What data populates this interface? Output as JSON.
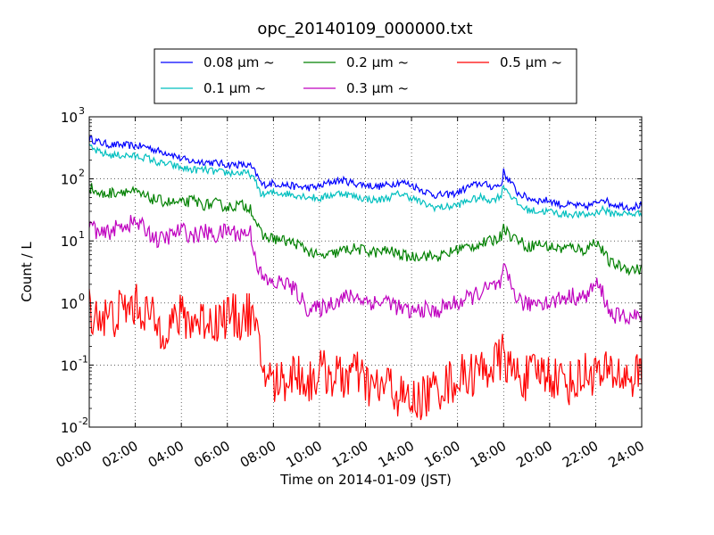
{
  "chart_data": {
    "type": "line",
    "title": "opc_20140109_000000.txt",
    "xlabel": "Time on 2014-01-09 (JST)",
    "ylabel": "Count / L",
    "x_unit": "hours",
    "xlim": [
      0,
      24
    ],
    "ylim": [
      0.01,
      1000
    ],
    "yscale": "log",
    "grid": true,
    "legend_position": "top",
    "x_ticks": [
      {
        "value": 0,
        "label": "00:00"
      },
      {
        "value": 2,
        "label": "02:00"
      },
      {
        "value": 4,
        "label": "04:00"
      },
      {
        "value": 6,
        "label": "06:00"
      },
      {
        "value": 8,
        "label": "08:00"
      },
      {
        "value": 10,
        "label": "10:00"
      },
      {
        "value": 12,
        "label": "12:00"
      },
      {
        "value": 14,
        "label": "14:00"
      },
      {
        "value": 16,
        "label": "16:00"
      },
      {
        "value": 18,
        "label": "18:00"
      },
      {
        "value": 20,
        "label": "20:00"
      },
      {
        "value": 22,
        "label": "22:00"
      },
      {
        "value": 24,
        "label": "24:00"
      }
    ],
    "y_ticks": [
      {
        "value": 0.01,
        "base": "10",
        "exp": "-2"
      },
      {
        "value": 0.1,
        "base": "10",
        "exp": "-1"
      },
      {
        "value": 1,
        "base": "10",
        "exp": "0"
      },
      {
        "value": 10,
        "base": "10",
        "exp": "1"
      },
      {
        "value": 100,
        "base": "10",
        "exp": "2"
      },
      {
        "value": 1000,
        "base": "10",
        "exp": "3"
      }
    ],
    "series": [
      {
        "name": "0.08 μm ~",
        "color": "#0000ff",
        "x": [
          0,
          0.5,
          1,
          1.5,
          2,
          2.5,
          3,
          3.5,
          4,
          4.5,
          5,
          5.5,
          6,
          6.5,
          7,
          7.25,
          7.5,
          8,
          8.5,
          9,
          9.5,
          10,
          10.5,
          11,
          11.5,
          12,
          12.5,
          13,
          13.5,
          14,
          14.5,
          15,
          15.5,
          16,
          16.5,
          17,
          17.5,
          17.9,
          18,
          18.1,
          18.3,
          18.6,
          19,
          19.5,
          20,
          20.5,
          21,
          21.5,
          22,
          22.3,
          22.6,
          23,
          23.5,
          24
        ],
        "y": [
          450,
          380,
          350,
          350,
          340,
          330,
          280,
          260,
          210,
          190,
          190,
          180,
          170,
          170,
          160,
          120,
          80,
          85,
          80,
          75,
          72,
          75,
          90,
          95,
          85,
          80,
          75,
          80,
          90,
          80,
          65,
          55,
          55,
          60,
          75,
          85,
          75,
          80,
          130,
          110,
          90,
          60,
          50,
          45,
          45,
          38,
          38,
          35,
          40,
          50,
          40,
          38,
          35,
          38
        ]
      },
      {
        "name": "0.1 μm ~",
        "color": "#00bfbf",
        "x": [
          0,
          0.5,
          1,
          1.5,
          2,
          2.5,
          3,
          3.5,
          4,
          4.5,
          5,
          5.5,
          6,
          6.5,
          7,
          7.25,
          7.5,
          8,
          8.5,
          9,
          9.5,
          10,
          10.5,
          11,
          11.5,
          12,
          12.5,
          13,
          13.5,
          14,
          14.5,
          15,
          15.5,
          16,
          16.5,
          17,
          17.5,
          17.9,
          18,
          18.1,
          18.3,
          18.6,
          19,
          19.5,
          20,
          20.5,
          21,
          21.5,
          22,
          22.3,
          22.6,
          23,
          23.5,
          24
        ],
        "y": [
          320,
          260,
          240,
          240,
          230,
          220,
          180,
          170,
          150,
          140,
          140,
          130,
          125,
          125,
          120,
          85,
          55,
          60,
          58,
          55,
          52,
          48,
          55,
          60,
          52,
          48,
          45,
          50,
          58,
          50,
          40,
          35,
          35,
          38,
          45,
          50,
          45,
          55,
          80,
          70,
          55,
          40,
          32,
          30,
          30,
          27,
          27,
          26,
          28,
          33,
          28,
          28,
          27,
          28
        ]
      },
      {
        "name": "0.2 μm ~",
        "color": "#008000",
        "x": [
          0,
          0.5,
          1,
          1.5,
          2,
          2.5,
          3,
          3.5,
          4,
          4.5,
          5,
          5.5,
          6,
          6.5,
          7,
          7.25,
          7.5,
          8,
          8.5,
          9,
          9.5,
          10,
          10.5,
          11,
          11.5,
          12,
          12.5,
          13,
          13.5,
          14,
          14.5,
          15,
          15.5,
          16,
          16.5,
          17,
          17.5,
          17.9,
          18,
          18.1,
          18.3,
          18.6,
          19,
          19.5,
          20,
          20.5,
          21,
          21.5,
          22,
          22.3,
          22.6,
          23,
          23.5,
          24
        ],
        "y": [
          75,
          55,
          60,
          65,
          60,
          50,
          45,
          42,
          40,
          45,
          38,
          40,
          35,
          38,
          35,
          20,
          12,
          11,
          10,
          9,
          7,
          5.5,
          6,
          7,
          7.5,
          7,
          6.5,
          7,
          6,
          5.5,
          6,
          5.5,
          6,
          7.5,
          8,
          9,
          10,
          12,
          20,
          15,
          12,
          11,
          8,
          9,
          8,
          7.5,
          8,
          7,
          10,
          7,
          4.5,
          4,
          3.5,
          3.5
        ]
      },
      {
        "name": "0.3 μm ~",
        "color": "#bf00bf",
        "x": [
          0,
          0.5,
          1,
          1.5,
          2,
          2.5,
          3,
          3.5,
          4,
          4.5,
          5,
          5.5,
          6,
          6.5,
          7,
          7.25,
          7.5,
          8,
          8.5,
          9,
          9.5,
          10,
          10.5,
          11,
          11.5,
          12,
          12.5,
          13,
          13.5,
          14,
          14.5,
          15,
          15.5,
          16,
          16.5,
          17,
          17.5,
          17.9,
          18,
          18.1,
          18.3,
          18.6,
          19,
          19.5,
          20,
          20.5,
          21,
          21.5,
          22,
          22.3,
          22.6,
          23,
          23.5,
          24
        ],
        "y": [
          20,
          12,
          15,
          18,
          20,
          15,
          10,
          12,
          15,
          12,
          14,
          12,
          15,
          13,
          14,
          5,
          2.5,
          2,
          2.2,
          1.5,
          0.8,
          0.8,
          1.0,
          1.2,
          1.3,
          1.1,
          1.0,
          1.1,
          0.8,
          0.7,
          0.8,
          0.7,
          0.9,
          1.0,
          1.2,
          1.5,
          1.8,
          2.0,
          3.5,
          2.8,
          2.0,
          1.2,
          0.9,
          1.1,
          1.0,
          1.2,
          1.3,
          1.2,
          2.0,
          1.5,
          0.7,
          0.6,
          0.6,
          0.6
        ]
      },
      {
        "name": "0.5 μm ~",
        "color": "#ff0000",
        "x": [
          0,
          0.5,
          1,
          1.5,
          2,
          2.5,
          3,
          3.5,
          4,
          4.5,
          5,
          5.5,
          6,
          6.5,
          7,
          7.25,
          7.5,
          8,
          8.5,
          9,
          9.5,
          10,
          10.5,
          11,
          11.5,
          12,
          12.5,
          13,
          13.5,
          14,
          14.5,
          15,
          15.5,
          16,
          16.5,
          17,
          17.5,
          17.9,
          18,
          18.1,
          18.3,
          18.6,
          19,
          19.5,
          20,
          20.5,
          21,
          21.5,
          22,
          22.3,
          22.6,
          23,
          23.5,
          24
        ],
        "y": [
          0.8,
          0.6,
          0.6,
          0.8,
          0.9,
          0.7,
          0.4,
          0.45,
          0.6,
          0.5,
          0.55,
          0.5,
          0.65,
          0.55,
          0.7,
          0.3,
          0.1,
          0.05,
          0.06,
          0.08,
          0.05,
          0.08,
          0.07,
          0.06,
          0.08,
          0.05,
          0.04,
          0.05,
          0.03,
          0.025,
          0.03,
          0.04,
          0.05,
          0.06,
          0.07,
          0.08,
          0.1,
          0.12,
          0.18,
          0.12,
          0.08,
          0.07,
          0.06,
          0.08,
          0.07,
          0.06,
          0.05,
          0.07,
          0.08,
          0.06,
          0.08,
          0.07,
          0.06,
          0.08
        ]
      }
    ]
  }
}
